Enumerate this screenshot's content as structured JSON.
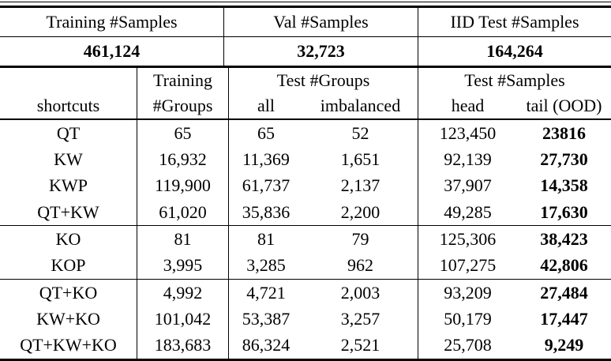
{
  "table": {
    "colors": {
      "background": "#ffffff",
      "text": "#000000",
      "rule": "#000000"
    },
    "summary": {
      "headers": [
        "Training #Samples",
        "Val #Samples",
        "IID Test #Samples"
      ],
      "values": [
        "461,124",
        "32,723",
        "164,264"
      ]
    },
    "columns": {
      "shortcuts_label": "shortcuts",
      "training_groups_line1": "Training",
      "training_groups_line2": "#Groups",
      "test_groups_label": "Test #Groups",
      "all_label": "all",
      "imbalanced_label": "imbalanced",
      "test_samples_label": "Test #Samples",
      "head_label": "head",
      "tail_label": "tail (OOD)"
    },
    "rows": [
      {
        "shortcut": "QT",
        "training_groups": "65",
        "all": "65",
        "imbalanced": "52",
        "head": "123,450",
        "tail": "23816"
      },
      {
        "shortcut": "KW",
        "training_groups": "16,932",
        "all": "11,369",
        "imbalanced": "1,651",
        "head": "92,139",
        "tail": "27,730"
      },
      {
        "shortcut": "KWP",
        "training_groups": "119,900",
        "all": "61,737",
        "imbalanced": "2,137",
        "head": "37,907",
        "tail": "14,358"
      },
      {
        "shortcut": "QT+KW",
        "training_groups": "61,020",
        "all": "35,836",
        "imbalanced": "2,200",
        "head": "49,285",
        "tail": "17,630"
      },
      {
        "shortcut": "KO",
        "training_groups": "81",
        "all": "81",
        "imbalanced": "79",
        "head": "125,306",
        "tail": "38,423"
      },
      {
        "shortcut": "KOP",
        "training_groups": "3,995",
        "all": "3,285",
        "imbalanced": "962",
        "head": "107,275",
        "tail": "42,806"
      },
      {
        "shortcut": "QT+KO",
        "training_groups": "4,992",
        "all": "4,721",
        "imbalanced": "2,003",
        "head": "93,209",
        "tail": "27,484"
      },
      {
        "shortcut": "KW+KO",
        "training_groups": "101,042",
        "all": "53,387",
        "imbalanced": "3,257",
        "head": "50,179",
        "tail": "17,447"
      },
      {
        "shortcut": "QT+KW+KO",
        "training_groups": "183,683",
        "all": "86,324",
        "imbalanced": "2,521",
        "head": "25,708",
        "tail": "9,249"
      }
    ]
  }
}
